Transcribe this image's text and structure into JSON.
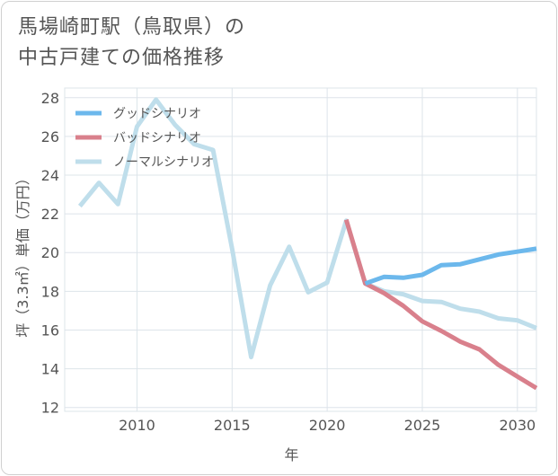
{
  "title": {
    "line1": "馬場崎町駅（鳥取県）の",
    "line2": "中古戸建ての価格推移"
  },
  "colors": {
    "good": "#6cb8ec",
    "bad": "#d9808c",
    "normal": "#bfdeeb",
    "grid": "#dde4ea",
    "axis_text": "#555555"
  },
  "chart_data": {
    "type": "line",
    "title": "馬場崎町駅（鳥取県）の中古戸建ての価格推移",
    "xlabel": "年",
    "ylabel": "坪（3.3㎡）単価（万円）",
    "xlim": [
      2006.2,
      2031
    ],
    "ylim": [
      11.8,
      28.5
    ],
    "xticks": [
      2010,
      2015,
      2020,
      2025,
      2030
    ],
    "yticks": [
      12,
      14,
      16,
      18,
      20,
      22,
      24,
      26,
      28
    ],
    "legend_position": "top-left",
    "series": [
      {
        "name": "グッドシナリオ",
        "key": "good",
        "x": [
          2022,
          2023,
          2024,
          2025,
          2026,
          2027,
          2028,
          2029,
          2030,
          2031
        ],
        "y": [
          18.4,
          18.75,
          18.7,
          18.85,
          19.35,
          19.4,
          19.65,
          19.9,
          20.05,
          20.2
        ]
      },
      {
        "name": "バッドシナリオ",
        "key": "bad",
        "x": [
          2021,
          2022,
          2023,
          2024,
          2025,
          2026,
          2027,
          2028,
          2029,
          2030,
          2031
        ],
        "y": [
          21.7,
          18.4,
          17.9,
          17.25,
          16.45,
          15.95,
          15.4,
          15.0,
          14.2,
          13.6,
          13.0
        ]
      },
      {
        "name": "ノーマルシナリオ",
        "key": "normal",
        "x": [
          2007,
          2008,
          2009,
          2010,
          2011,
          2012,
          2013,
          2014,
          2015,
          2016,
          2017,
          2018,
          2019,
          2020,
          2021,
          2022,
          2023,
          2024,
          2025,
          2026,
          2027,
          2028,
          2029,
          2030,
          2031
        ],
        "y": [
          22.4,
          23.6,
          22.5,
          26.5,
          27.9,
          26.6,
          25.6,
          25.3,
          20.2,
          14.6,
          18.3,
          20.3,
          17.95,
          18.45,
          21.65,
          18.4,
          18.0,
          17.85,
          17.5,
          17.45,
          17.1,
          16.95,
          16.6,
          16.5,
          16.1
        ]
      }
    ]
  }
}
